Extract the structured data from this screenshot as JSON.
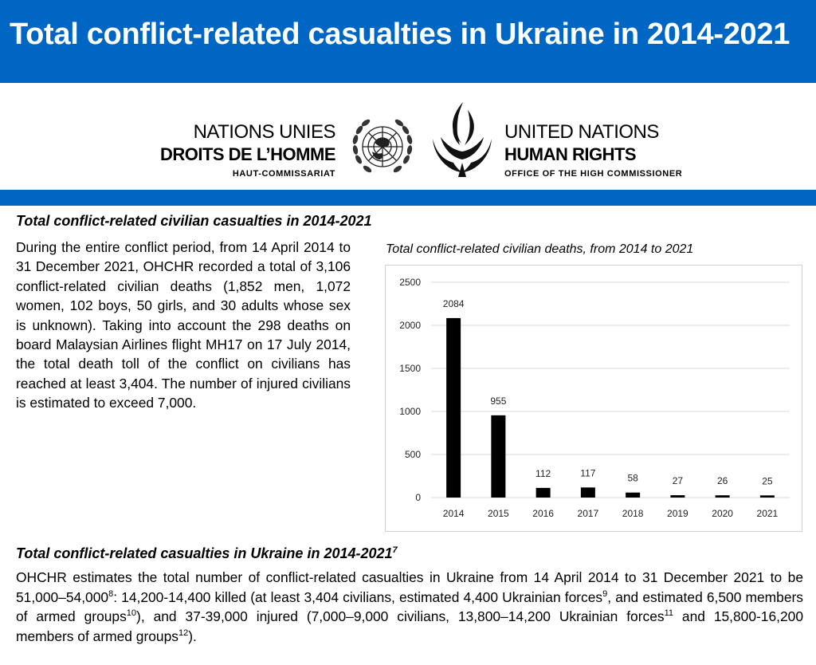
{
  "header": {
    "title": "Total conflict-related casualties in Ukraine in 2014-2021"
  },
  "logo": {
    "fr_line1": "NATIONS UNIES",
    "fr_line2": "DROITS DE L’HOMME",
    "fr_line3": "HAUT-COMMISSARIAT",
    "en_line1": "UNITED NATIONS",
    "en_line2": "HUMAN RIGHTS",
    "en_line3": "OFFICE OF THE HIGH COMMISSIONER"
  },
  "section1": {
    "heading": "Total conflict-related civilian casualties in 2014-2021",
    "body": "During the entire conflict period, from 14 April 2014 to 31 December 2021, OHCHR recorded a total of 3,106 conflict-related civilian deaths (1,852 men, 1,072 women, 102 boys, 50 girls, and 30 adults whose sex is unknown). Taking into account the 298 deaths on board Malaysian Airlines flight MH17 on 17 July 2014, the total death toll of the conflict on civilians has reached at least 3,404. The number of injured civilians is estimated to exceed 7,000."
  },
  "section2": {
    "heading": "Total conflict-related casualties in Ukraine in 2014-2021",
    "heading_fn": "7",
    "seg1": "OHCHR estimates the total number of conflict-related casualties in Ukraine from 14 April 2014 to 31 December 2021 to be 51,000–54,000",
    "fn1": "8",
    "seg2": ": 14,200-14,400 killed (at least 3,404 civilians, estimated 4,400 Ukrainian forces",
    "fn2": "9",
    "seg3": ", and estimated 6,500 members of armed groups",
    "fn3": "10",
    "seg4": "), and 37-39,000 injured (7,000–9,000 civilians, 13,800–14,200 Ukrainian forces",
    "fn4": "11",
    "seg5": " and 15,800-16,200 members of armed groups",
    "fn5": "12",
    "seg6": ")."
  },
  "chart_data": {
    "type": "bar",
    "title": "Total conflict-related civilian deaths, from 2014 to 2021",
    "categories": [
      "2014",
      "2015",
      "2016",
      "2017",
      "2018",
      "2019",
      "2020",
      "2021"
    ],
    "values": [
      2084,
      955,
      112,
      117,
      58,
      27,
      26,
      25
    ],
    "y_ticks": [
      0,
      500,
      1000,
      1500,
      2000,
      2500
    ],
    "ylim": [
      0,
      2500
    ],
    "xlabel": "",
    "ylabel": "",
    "grid": true,
    "bar_color": "#000000"
  },
  "colors": {
    "brand_blue": "#0066c4",
    "gridline": "#d9d9d9",
    "chart_border": "#d0d0d0"
  }
}
